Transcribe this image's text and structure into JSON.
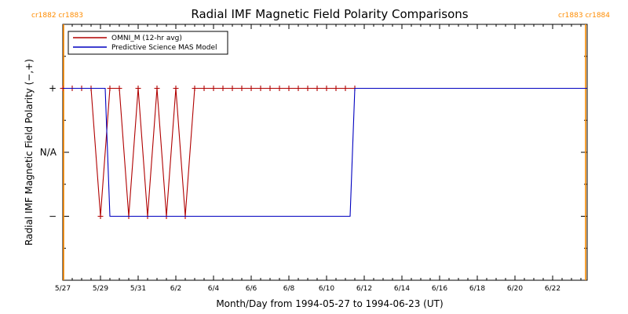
{
  "chart_data": {
    "type": "line",
    "title": "Radial IMF Magnetic Field Polarity Comparisons",
    "xlabel": "Month/Day from 1994-05-27 to 1994-06-23 (UT)",
    "ylabel": "Radial IMF Magnetic Field Polarity (−,+)",
    "x_tick_labels": [
      "5/27",
      "5/29",
      "5/31",
      "6/2",
      "6/4",
      "6/6",
      "6/8",
      "6/10",
      "6/12",
      "6/14",
      "6/16",
      "6/18",
      "6/20",
      "6/22"
    ],
    "xlim": [
      "1994-05-27",
      "1994-06-23T20:00"
    ],
    "y_tick_labels": [
      "+",
      "N/A",
      "−"
    ],
    "ylim": [
      -2,
      2
    ],
    "carrington_markers": [
      {
        "x": "1994-05-27",
        "labels": [
          "cr1882",
          "cr1883"
        ]
      },
      {
        "x": "1994-06-23T18:00",
        "labels": [
          "cr1883",
          "cr1884"
        ]
      }
    ],
    "legend_position": "top-left",
    "series": [
      {
        "name": "OMNI_M (12-hr avg)",
        "color": "#b00000",
        "marker": "+",
        "points": [
          [
            "1994-05-27T00:00",
            1
          ],
          [
            "1994-05-27T12:00",
            1
          ],
          [
            "1994-05-28T00:00",
            1
          ],
          [
            "1994-05-28T12:00",
            1
          ],
          [
            "1994-05-29T00:00",
            -1
          ],
          [
            "1994-05-29T12:00",
            1
          ],
          [
            "1994-05-30T00:00",
            1
          ],
          [
            "1994-05-30T12:00",
            -1
          ],
          [
            "1994-05-31T00:00",
            1
          ],
          [
            "1994-05-31T12:00",
            -1
          ],
          [
            "1994-06-01T00:00",
            1
          ],
          [
            "1994-06-01T12:00",
            -1
          ],
          [
            "1994-06-02T00:00",
            1
          ],
          [
            "1994-06-02T12:00",
            -1
          ],
          [
            "1994-06-03T00:00",
            1
          ],
          [
            "1994-06-03T12:00",
            1
          ],
          [
            "1994-06-04T00:00",
            1
          ],
          [
            "1994-06-04T12:00",
            1
          ],
          [
            "1994-06-05T00:00",
            1
          ],
          [
            "1994-06-05T12:00",
            1
          ],
          [
            "1994-06-06T00:00",
            1
          ],
          [
            "1994-06-06T12:00",
            1
          ],
          [
            "1994-06-07T00:00",
            1
          ],
          [
            "1994-06-07T12:00",
            1
          ],
          [
            "1994-06-08T00:00",
            1
          ],
          [
            "1994-06-08T12:00",
            1
          ],
          [
            "1994-06-09T00:00",
            1
          ],
          [
            "1994-06-09T12:00",
            1
          ],
          [
            "1994-06-10T00:00",
            1
          ],
          [
            "1994-06-10T12:00",
            1
          ],
          [
            "1994-06-11T00:00",
            1
          ],
          [
            "1994-06-11T12:00",
            1
          ]
        ]
      },
      {
        "name": "Predictive Science MAS Model",
        "color": "#0000c0",
        "marker": "none",
        "points": [
          [
            "1994-05-27T00:00",
            1
          ],
          [
            "1994-05-29T06:00",
            1
          ],
          [
            "1994-05-29T12:00",
            -1
          ],
          [
            "1994-06-11T06:00",
            -1
          ],
          [
            "1994-06-11T12:00",
            1
          ],
          [
            "1994-06-23T20:00",
            1
          ]
        ]
      }
    ]
  }
}
